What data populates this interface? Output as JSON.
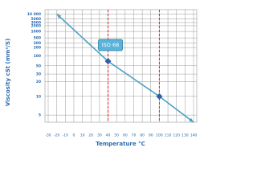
{
  "chart_data": {
    "type": "line",
    "yscale": "walther",
    "xlabel": "Temperature °C",
    "ylabel": "Viscosity cSt (mm²/S)",
    "xlim": [
      -30,
      140
    ],
    "xticks": [
      -30,
      -20,
      -10,
      0,
      10,
      20,
      30,
      40,
      50,
      60,
      70,
      80,
      90,
      100,
      110,
      120,
      130,
      140
    ],
    "ylim": [
      4,
      20000
    ],
    "yticks": [
      {
        "value": 10000,
        "label": "10 000"
      },
      5000,
      3000,
      2000,
      1000,
      500,
      300,
      200,
      100,
      50,
      30,
      20,
      10,
      5
    ],
    "grid": true,
    "series": [
      {
        "color": "#4aa0c2",
        "x": [
          -20,
          40,
          100,
          140
        ],
        "values": [
          10000,
          68,
          10,
          4
        ]
      }
    ],
    "points": {
      "color": "#2f5fa8",
      "x": [
        40,
        100
      ],
      "values": [
        68,
        10
      ]
    },
    "vlines": {
      "color": "#d9262b",
      "x": [
        40,
        100
      ]
    },
    "annotation": {
      "text": "ISO 68",
      "x": 40
    }
  }
}
